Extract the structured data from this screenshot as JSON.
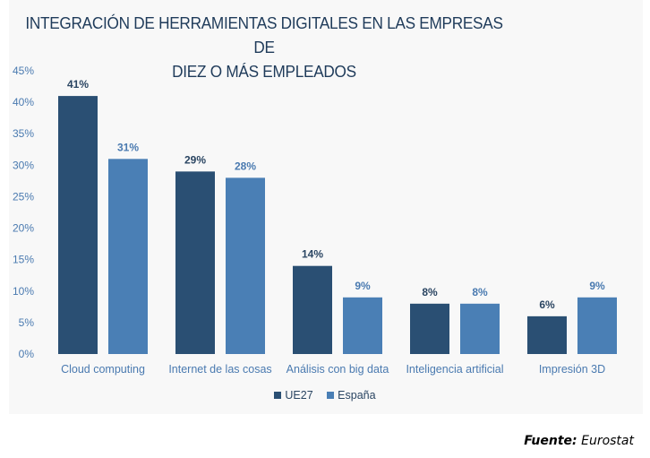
{
  "chart_data": {
    "type": "bar",
    "title": "INTEGRACIÓN DE HERRAMIENTAS DIGITALES EN LAS EMPRESAS DE DIEZ O MÁS EMPLEADOS",
    "title_lines": [
      "INTEGRACIÓN DE HERRAMIENTAS DIGITALES EN LAS EMPRESAS DE",
      "DIEZ O MÁS EMPLEADOS"
    ],
    "categories": [
      "Cloud computing",
      "Internet de las cosas",
      "Análisis con big data",
      "Inteligencia artificial",
      "Impresión 3D"
    ],
    "series": [
      {
        "name": "UE27",
        "color": "#2a4f73",
        "values": [
          41,
          29,
          14,
          8,
          6
        ],
        "labels": [
          "41%",
          "29%",
          "14%",
          "8%",
          "6%"
        ]
      },
      {
        "name": "España",
        "color": "#4a7fb5",
        "values": [
          31,
          28,
          9,
          8,
          9
        ],
        "labels": [
          "31%",
          "28%",
          "9%",
          "8%",
          "9%"
        ]
      }
    ],
    "xlabel": "",
    "ylabel": "",
    "ylim": [
      0,
      45
    ],
    "yticks": [
      0,
      5,
      10,
      15,
      20,
      25,
      30,
      35,
      40,
      45
    ],
    "ytick_labels": [
      "0%",
      "5%",
      "10%",
      "15%",
      "20%",
      "25%",
      "30%",
      "35%",
      "40%",
      "45%"
    ],
    "grid": false,
    "legend_position": "bottom"
  },
  "source": {
    "label": "Fuente:",
    "value": "Eurostat"
  }
}
